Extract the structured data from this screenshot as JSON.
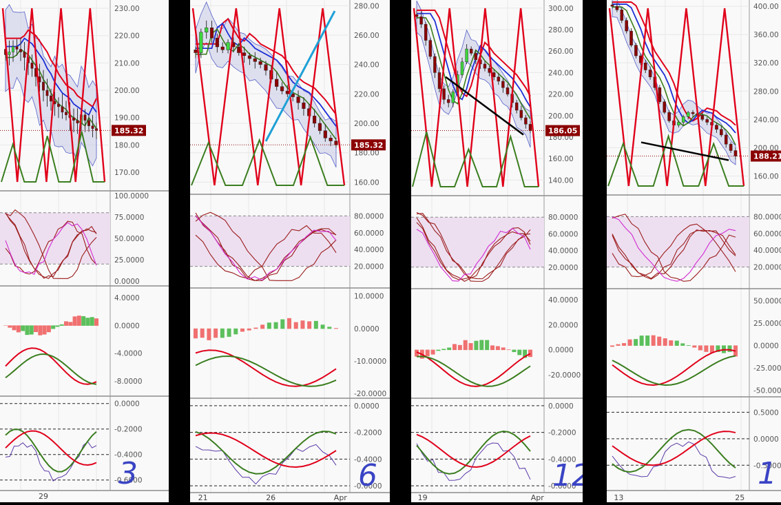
{
  "colors": {
    "background": "#f9f9f9",
    "gutter": "#000000",
    "grid": "#e8e8e8",
    "price_tag": "#8b0000",
    "candle_down": "#8b0000",
    "candle_up": "#3cd63c",
    "ema_red": "#e0001a",
    "ema_blue": "#1f2fd6",
    "ema_green": "#3a7d1e",
    "band_fill": "#c8cbe6",
    "stoch_zone": "#eddff0",
    "hist_pos": "#5cbf5c",
    "hist_neg": "#f07070",
    "trendline_blue": "#1ea0d6",
    "trendline_black": "#000000",
    "handwriting": "#3a44c4"
  },
  "panels": [
    {
      "id": "panel-1",
      "price_tag": "185.32",
      "price_ticks": [
        "230.00",
        "220.00",
        "210.00",
        "200.00",
        "190.00",
        "180.00",
        "170.00"
      ],
      "stoch_ticks": [
        "100.0000",
        "75.0000",
        "50.0000",
        "25.0000",
        "0.0000"
      ],
      "macd_ticks": [
        "4.0000",
        "0.0000",
        "-4.0000",
        "-8.0000"
      ],
      "osc_ticks": [
        "0.0000",
        "-0.2000",
        "-0.4000",
        "-0.6000"
      ],
      "date_labels": [
        "29"
      ],
      "handwritten": "3",
      "annotation_lines": [],
      "chart_data": {
        "type": "candlestick",
        "price_range": [
          165,
          232
        ],
        "close_series": [
          213,
          214,
          216,
          215,
          214,
          212,
          210,
          208,
          205,
          203,
          200,
          198,
          196,
          195,
          194,
          192,
          191,
          190,
          189,
          188,
          191,
          189,
          187,
          186,
          185.32
        ],
        "stoch_range": [
          0,
          100
        ],
        "macd_range": [
          -9.5,
          5
        ],
        "osc_range": [
          -0.65,
          0.02
        ]
      }
    },
    {
      "id": "panel-2",
      "price_tag": "185.32",
      "price_ticks": [
        "280.00",
        "260.00",
        "240.00",
        "220.00",
        "200.00",
        "180.00",
        "160.00"
      ],
      "stoch_ticks": [
        "80.0000",
        "60.0000",
        "40.0000",
        "20.0000"
      ],
      "macd_ticks": [
        "10.0000",
        "0.0000",
        "-10.0000",
        "-20.0000"
      ],
      "osc_ticks": [
        "0.0000",
        "-0.2000",
        "-0.4000",
        "-0.6000"
      ],
      "date_labels": [
        "21",
        "26",
        "Apr"
      ],
      "handwritten": "6",
      "annotation_lines": [
        "blue_trendline"
      ],
      "chart_data": {
        "type": "candlestick",
        "price_range": [
          155,
          282
        ],
        "close_series": [
          248,
          262,
          265,
          258,
          252,
          250,
          255,
          252,
          248,
          246,
          244,
          242,
          240,
          236,
          230,
          225,
          222,
          220,
          218,
          214,
          210,
          205,
          200,
          195,
          190,
          188,
          185.32
        ],
        "stoch_range": [
          0,
          100
        ],
        "macd_range": [
          -20,
          11
        ],
        "osc_range": [
          -0.62,
          0.02
        ]
      }
    },
    {
      "id": "panel-3",
      "price_tag": "186.05",
      "price_ticks": [
        "300.00",
        "280.00",
        "260.00",
        "240.00",
        "220.00",
        "200.00",
        "180.00",
        "160.00",
        "140.00"
      ],
      "stoch_ticks": [
        "80.0000",
        "60.0000",
        "40.0000",
        "20.0000"
      ],
      "macd_ticks": [
        "40.0000",
        "20.0000",
        "0.0000",
        "-20.0000"
      ],
      "osc_ticks": [
        "0.0000",
        "-0.2000",
        "-0.4000",
        "-0.6000"
      ],
      "date_labels": [
        "19",
        "Apr"
      ],
      "handwritten": "12",
      "annotation_lines": [
        "black_trendline"
      ],
      "chart_data": {
        "type": "candlestick",
        "price_range": [
          130,
          305
        ],
        "close_series": [
          292,
          285,
          270,
          255,
          240,
          225,
          215,
          212,
          222,
          238,
          250,
          262,
          258,
          252,
          248,
          244,
          240,
          236,
          232,
          226,
          220,
          212,
          205,
          198,
          192,
          186.05
        ],
        "stoch_range": [
          0,
          100
        ],
        "macd_range": [
          -35,
          45
        ],
        "osc_range": [
          -0.62,
          0.02
        ]
      }
    },
    {
      "id": "panel-4",
      "price_tag": "188.21",
      "price_ticks": [
        "400.00",
        "360.00",
        "320.00",
        "280.00",
        "240.00",
        "200.00",
        "160.00"
      ],
      "stoch_ticks": [
        "80.0000",
        "60.0000",
        "40.0000",
        "20.0000"
      ],
      "macd_ticks": [
        "50.0000",
        "25.0000",
        "0.0000",
        "-25.0000",
        "-50.0000"
      ],
      "osc_ticks": [
        "0.5000",
        "0.0000",
        "-0.5000"
      ],
      "date_labels": [
        "13",
        "25"
      ],
      "handwritten": "1",
      "annotation_lines": [
        "black_trendline"
      ],
      "chart_data": {
        "type": "candlestick",
        "price_range": [
          140,
          405
        ],
        "close_series": [
          400,
          395,
          380,
          365,
          345,
          330,
          320,
          310,
          300,
          285,
          265,
          250,
          238,
          232,
          236,
          244,
          250,
          248,
          246,
          240,
          236,
          232,
          226,
          218,
          205,
          196,
          188.21
        ],
        "stoch_range": [
          0,
          100
        ],
        "macd_range": [
          -52,
          58
        ],
        "osc_range": [
          -0.9,
          0.7
        ]
      }
    }
  ]
}
